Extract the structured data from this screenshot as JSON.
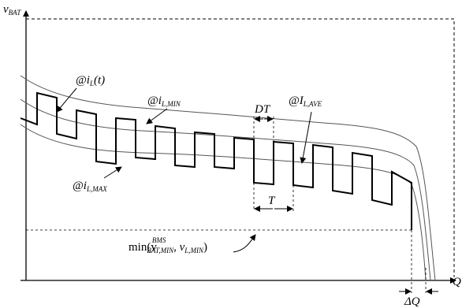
{
  "diagram": {
    "y_axis_label": "v",
    "y_axis_label_sub": "BAT",
    "x_axis_label": "Q",
    "labels": {
      "il_t": {
        "prefix": "@i",
        "sub": "L",
        "suffix": "(t)"
      },
      "il_min": {
        "prefix": "@i",
        "sub": "L,MIN"
      },
      "il_ave": {
        "prefix": "@I",
        "sub": "L,AVE"
      },
      "il_max": {
        "prefix": "@i",
        "sub": "L,MAX"
      },
      "dt": "DT",
      "t": "T",
      "min_expr": {
        "func": "min(v",
        "sup": "BMS",
        "sub": "BAT,MIN",
        "mid": ", v",
        "sub2": "L,MIN",
        "close": ")"
      },
      "delta_q": "ΔQ"
    }
  }
}
